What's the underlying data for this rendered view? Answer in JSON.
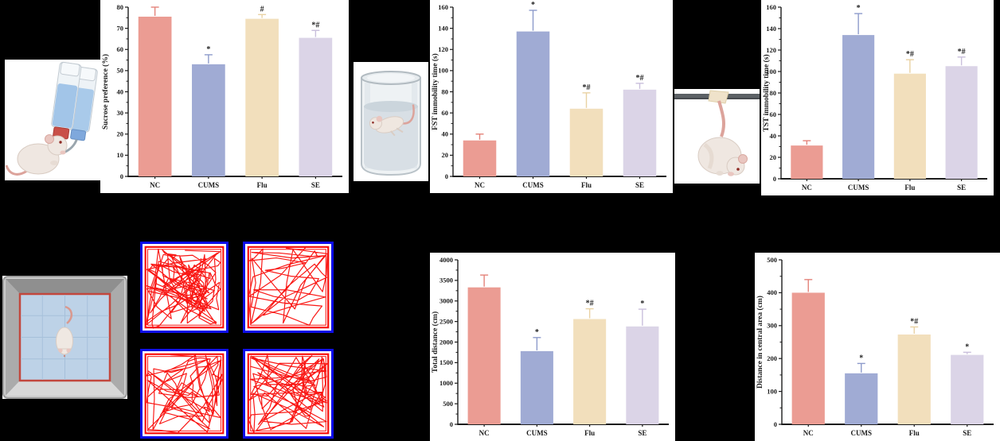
{
  "figure": {
    "background": "#000000",
    "panel_background": "#FFFFFF",
    "groups": [
      "NC",
      "CUMS",
      "Flu",
      "SE"
    ],
    "bar_colors": [
      "#EB9C93",
      "#A0ABD4",
      "#F2DFBC",
      "#DBD4E7"
    ],
    "error_bar_colors": [
      "#E4837A",
      "#8D9BCB",
      "#E9D2A3",
      "#C9BFDC"
    ],
    "axis_color": "#1C1C1C",
    "annotation_color": "#1A1A1A"
  },
  "chart_data": [
    {
      "id": "spt",
      "type": "bar",
      "title": "",
      "xlabel": "",
      "ylabel": "Sucrose preference (%)",
      "categories": [
        "NC",
        "CUMS",
        "Flu",
        "SE"
      ],
      "values": [
        75.5,
        53,
        74.5,
        65.5
      ],
      "errors": [
        4.5,
        4.5,
        2,
        3.5
      ],
      "annotations": [
        "",
        "*",
        "#",
        "*#"
      ],
      "ylim": [
        0,
        80
      ],
      "ytick_step": 10,
      "grid": false,
      "legend": false
    },
    {
      "id": "fst",
      "type": "bar",
      "title": "",
      "xlabel": "",
      "ylabel": "FST immobility time (s)",
      "categories": [
        "NC",
        "CUMS",
        "Flu",
        "SE"
      ],
      "values": [
        34,
        137,
        64,
        82
      ],
      "errors": [
        6,
        20,
        15,
        6
      ],
      "annotations": [
        "",
        "*",
        "*#",
        "*#"
      ],
      "ylim": [
        0,
        160
      ],
      "ytick_step": 20,
      "grid": false,
      "legend": false
    },
    {
      "id": "tst",
      "type": "bar",
      "title": "",
      "xlabel": "",
      "ylabel": "TST immobility time (s)",
      "categories": [
        "NC",
        "CUMS",
        "Flu",
        "SE"
      ],
      "values": [
        31,
        134,
        98,
        105
      ],
      "errors": [
        4.5,
        20,
        13,
        8.5
      ],
      "annotations": [
        "",
        "*",
        "*#",
        "*#"
      ],
      "ylim": [
        0,
        160
      ],
      "ytick_step": 20,
      "grid": false,
      "legend": false
    },
    {
      "id": "dist",
      "type": "bar",
      "title": "",
      "xlabel": "",
      "ylabel": "Total distance (cm)",
      "categories": [
        "NC",
        "CUMS",
        "Flu",
        "SE"
      ],
      "values": [
        3330,
        1780,
        2560,
        2380
      ],
      "errors": [
        300,
        330,
        250,
        420
      ],
      "annotations": [
        "",
        "*",
        "*#",
        "*"
      ],
      "ylim": [
        0,
        4000
      ],
      "ytick_step": 500,
      "grid": false,
      "legend": false
    },
    {
      "id": "central",
      "type": "bar",
      "title": "",
      "xlabel": "",
      "ylabel": "Distance in central area (cm)",
      "categories": [
        "NC",
        "CUMS",
        "Flu",
        "SE"
      ],
      "values": [
        400,
        155,
        273,
        211
      ],
      "errors": [
        40,
        30,
        23,
        8
      ],
      "annotations": [
        "",
        "*",
        "*#",
        "*"
      ],
      "ylim": [
        0,
        500
      ],
      "ytick_step": 100,
      "grid": false,
      "legend": false
    }
  ],
  "track_plots": {
    "frame_color": "#0D0DE8",
    "trace_color": "#F90B07",
    "panels": [
      {
        "name": "nc-track",
        "trace_density": 95,
        "wall_bias": 0.3,
        "seed": 7
      },
      {
        "name": "cums-track",
        "trace_density": 30,
        "wall_bias": 0.75,
        "seed": 13
      },
      {
        "name": "flu-track",
        "trace_density": 56,
        "wall_bias": 0.45,
        "seed": 23
      },
      {
        "name": "se-track",
        "trace_density": 62,
        "wall_bias": 0.5,
        "seed": 31
      }
    ]
  },
  "illustrations": [
    {
      "id": "spt",
      "label": "sucrose-preference-test"
    },
    {
      "id": "fst",
      "label": "forced-swim-test"
    },
    {
      "id": "tst",
      "label": "tail-suspension-test"
    },
    {
      "id": "oft",
      "label": "open-field-test"
    }
  ]
}
